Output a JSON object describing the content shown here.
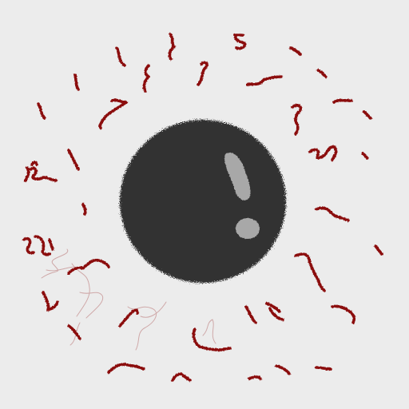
{
  "colors": {
    "background": "#ececec",
    "orb": "#303030",
    "highlight": "#a8a8a8",
    "marks": "#8b1010",
    "faint_lines": "#c89898"
  },
  "icons": {
    "orb": "dark-fuzzy-orb-icon",
    "highlight": "orb-highlight-shape"
  }
}
